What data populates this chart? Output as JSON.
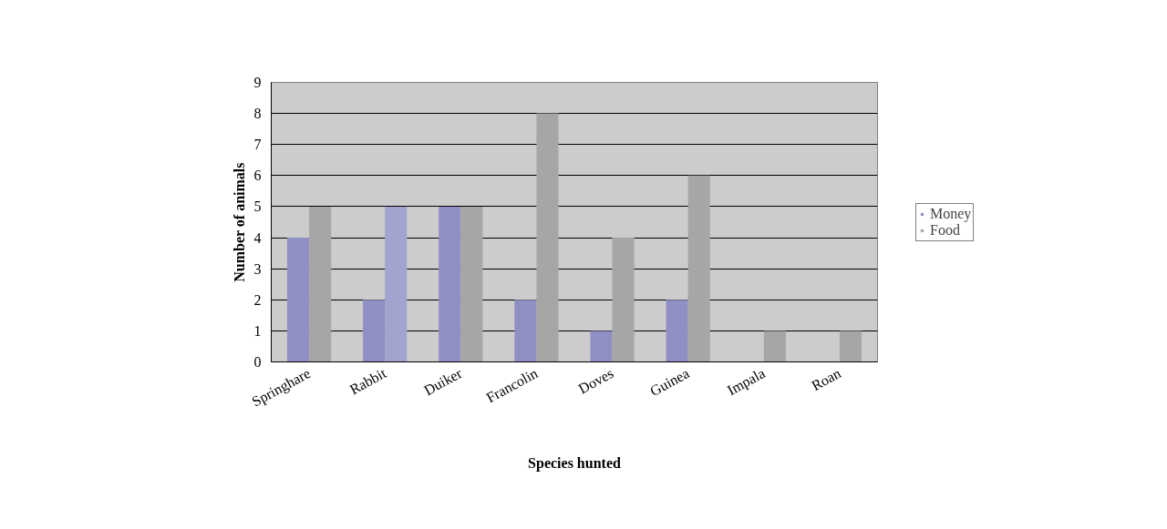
{
  "chart_data": {
    "type": "bar",
    "xlabel": "Species hunted",
    "ylabel": "Number of animals",
    "categories": [
      "Springhare",
      "Rabbit",
      "Duiker",
      "Francolin",
      "Doves",
      "Guinea",
      "Impala",
      "Roan"
    ],
    "series": [
      {
        "name": "Money",
        "color": "#8f8fc3",
        "values": [
          4,
          2,
          5,
          2,
          1,
          2,
          0,
          0
        ]
      },
      {
        "name": "Food",
        "color": "#a6a6a6",
        "colors": [
          "#a6a6a6",
          "#a3a3cf",
          "#a6a6a6",
          "#a6a6a6",
          "#a6a6a6",
          "#a6a6a6",
          "#a6a6a6",
          "#a6a6a6"
        ],
        "values": [
          5,
          5,
          5,
          8,
          4,
          6,
          1,
          1
        ]
      }
    ],
    "ylim": [
      0,
      9
    ],
    "yticks": [
      0,
      1,
      2,
      3,
      4,
      5,
      6,
      7,
      8,
      9
    ],
    "grid": "y",
    "legend": "right"
  }
}
